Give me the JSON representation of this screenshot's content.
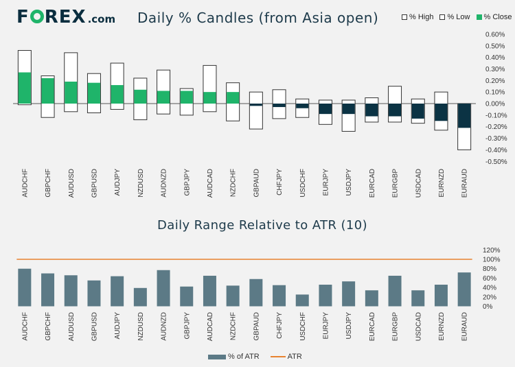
{
  "brand": {
    "name_part1": "F",
    "name_part2": "REX",
    "suffix": ".com"
  },
  "colors": {
    "background": "#f2f2f2",
    "close_up": "#1fb46a",
    "close_down": "#0b3344",
    "bar": "#5c7a86",
    "atr_line": "#e8822f"
  },
  "chart_data": [
    {
      "type": "bar",
      "title": "Daily % Candles (from Asia open)",
      "legend": [
        "% High",
        "% Low",
        "% Close"
      ],
      "categories": [
        "AUDCHF",
        "GBPCHF",
        "AUDUSD",
        "GBPUSD",
        "AUDJPY",
        "NZDUSD",
        "AUDNZD",
        "GBPJPY",
        "AUDCAD",
        "NZDCHF",
        "GBPAUD",
        "CHFJPY",
        "USDCHF",
        "EURJPY",
        "USDJPY",
        "EURCAD",
        "EURGBP",
        "USDCAD",
        "EURNZD",
        "EURAUD"
      ],
      "series": [
        {
          "name": "% High",
          "values": [
            0.46,
            0.24,
            0.44,
            0.26,
            0.35,
            0.22,
            0.29,
            0.13,
            0.33,
            0.18,
            0.1,
            0.12,
            0.04,
            0.03,
            0.03,
            0.05,
            0.15,
            0.04,
            0.1,
            0.0
          ]
        },
        {
          "name": "% Low",
          "values": [
            -0.01,
            -0.12,
            -0.07,
            -0.08,
            -0.05,
            -0.14,
            -0.09,
            -0.1,
            -0.07,
            -0.15,
            -0.22,
            -0.13,
            -0.12,
            -0.18,
            -0.24,
            -0.16,
            -0.16,
            -0.17,
            -0.23,
            -0.4
          ]
        },
        {
          "name": "% Close",
          "values": [
            0.27,
            0.22,
            0.19,
            0.18,
            0.16,
            0.12,
            0.11,
            0.11,
            0.1,
            0.1,
            -0.02,
            -0.03,
            -0.04,
            -0.09,
            -0.09,
            -0.11,
            -0.11,
            -0.13,
            -0.15,
            -0.21
          ]
        }
      ],
      "ylim": [
        -0.5,
        0.6
      ],
      "yticks": [
        "0.60%",
        "0.50%",
        "0.40%",
        "0.30%",
        "0.20%",
        "0.10%",
        "0.00%",
        "-0.10%",
        "-0.20%",
        "-0.30%",
        "-0.40%",
        "-0.50%"
      ],
      "ytick_values": [
        0.6,
        0.5,
        0.4,
        0.3,
        0.2,
        0.1,
        0.0,
        -0.1,
        -0.2,
        -0.3,
        -0.4,
        -0.5
      ]
    },
    {
      "type": "bar",
      "title": "Daily Range Relative to ATR (10)",
      "legend": [
        "% of ATR",
        "ATR"
      ],
      "categories": [
        "AUDCHF",
        "GBPCHF",
        "AUDUSD",
        "GBPUSD",
        "AUDJPY",
        "NZDUSD",
        "AUDNZD",
        "GBPJPY",
        "AUDCAD",
        "NZDCHF",
        "GBPAUD",
        "CHFJPY",
        "USDCHF",
        "EURJPY",
        "USDJPY",
        "EURCAD",
        "EURGBP",
        "USDCAD",
        "EURNZD",
        "EURAUD"
      ],
      "series": [
        {
          "name": "% of ATR",
          "values": [
            80,
            70,
            66,
            55,
            64,
            39,
            77,
            42,
            65,
            44,
            58,
            45,
            25,
            46,
            53,
            34,
            65,
            34,
            46,
            72
          ]
        },
        {
          "name": "ATR",
          "values": [
            100,
            100,
            100,
            100,
            100,
            100,
            100,
            100,
            100,
            100,
            100,
            100,
            100,
            100,
            100,
            100,
            100,
            100,
            100,
            100
          ]
        }
      ],
      "ylim": [
        0,
        120
      ],
      "yticks": [
        "120%",
        "100%",
        "80%",
        "60%",
        "40%",
        "20%",
        "0%"
      ],
      "ytick_values": [
        120,
        100,
        80,
        60,
        40,
        20,
        0
      ]
    }
  ]
}
